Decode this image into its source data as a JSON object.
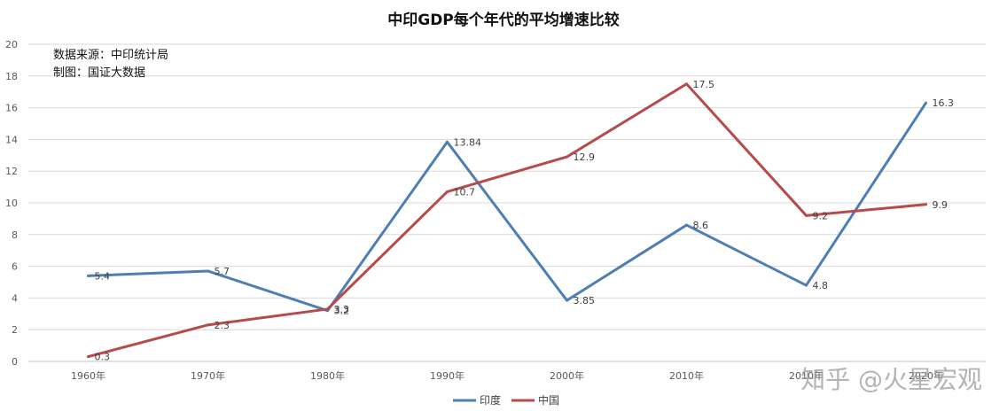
{
  "chart_data": {
    "type": "line",
    "title": "中印GDP每个年代的平均增速比较",
    "categories": [
      "1960年",
      "1970年",
      "1980年",
      "1990年",
      "2000年",
      "2010年",
      "2010年",
      "2020年"
    ],
    "series": [
      {
        "name": "印度",
        "color": "#4e7fb3",
        "values": [
          5.4,
          5.7,
          3.2,
          13.84,
          3.85,
          8.6,
          4.8,
          16.3
        ]
      },
      {
        "name": "中国",
        "color": "#b64b4b",
        "values": [
          0.3,
          2.3,
          3.3,
          10.7,
          12.9,
          17.5,
          9.2,
          9.9
        ]
      }
    ],
    "data_labels": {
      "印度": [
        "5.4",
        "5.7",
        "3.2",
        "13.84",
        "3.85",
        "8.6",
        "4.8",
        "16.3"
      ],
      "中国": [
        "0.3",
        "2.3",
        "3.3",
        "10.7",
        "12.9",
        "17.5",
        "9.2",
        "9.9"
      ]
    },
    "ylim": [
      0,
      20
    ],
    "yticks": [
      0,
      2,
      4,
      6,
      8,
      10,
      12,
      14,
      16,
      18,
      20
    ],
    "grid": true,
    "legend_position": "bottom",
    "annotations": [
      "数据来源：中印统计局",
      "制图：国证大数据"
    ]
  },
  "watermark": "知乎 @火星宏观",
  "colors": {
    "grid": "#d9d9d9",
    "axis": "#bfbfbf"
  }
}
